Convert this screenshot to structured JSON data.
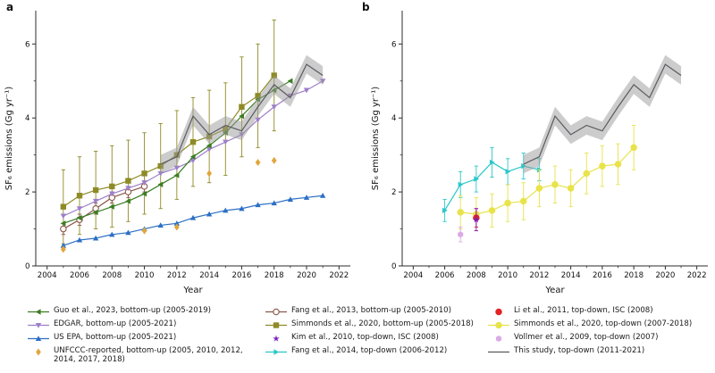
{
  "figure": {
    "panels": [
      {
        "label": "a"
      },
      {
        "label": "b"
      }
    ],
    "xlabel": "Year",
    "ylabel": "SF₆ emissions (Gg yr⁻¹)"
  },
  "chart_data": [
    {
      "type": "line",
      "panel": "a",
      "title": "",
      "xlabel": "Year",
      "ylabel": "SF₆ emissions (Gg yr⁻¹)",
      "xlim": [
        2003.3,
        2022.7
      ],
      "ylim": [
        0,
        6.9
      ],
      "xticks": [
        2004,
        2006,
        2008,
        2010,
        2012,
        2014,
        2016,
        2018,
        2020,
        2022
      ],
      "xticks_minor": [
        2005,
        2007,
        2009,
        2011,
        2013,
        2015,
        2017,
        2019,
        2021
      ],
      "yticks": [
        0,
        2,
        4,
        6
      ],
      "yticks_minor": [
        1,
        3,
        5
      ],
      "grid": false,
      "series": [
        {
          "name": "Simmonds et al., 2020, bottom-up (2005-2018)",
          "color": "#8e8b26",
          "marker": "square",
          "line": true,
          "x": [
            2005,
            2006,
            2007,
            2008,
            2009,
            2010,
            2011,
            2012,
            2013,
            2014,
            2015,
            2016,
            2017,
            2018
          ],
          "y": [
            1.6,
            1.9,
            2.05,
            2.15,
            2.3,
            2.5,
            2.7,
            3.0,
            3.35,
            3.5,
            3.7,
            4.3,
            4.6,
            5.15
          ],
          "yerr": [
            1.0,
            1.05,
            1.05,
            1.1,
            1.1,
            1.1,
            1.15,
            1.2,
            1.2,
            1.25,
            1.25,
            1.35,
            1.4,
            1.5
          ]
        },
        {
          "name": "Fang et al., 2013, bottom-up (2005-2010)",
          "color": "#8a5748",
          "marker": "circle-open",
          "line": true,
          "x": [
            2005,
            2006,
            2007,
            2008,
            2009,
            2010
          ],
          "y": [
            1.0,
            1.25,
            1.55,
            1.85,
            2.0,
            2.15
          ],
          "yerr": [
            0.15,
            0.15,
            0.15,
            0.15,
            0.15,
            0.15
          ]
        },
        {
          "name": "EDGAR, bottom-up (2005-2021)",
          "color": "#9d7fc9",
          "marker": "triangle-down",
          "line": true,
          "x": [
            2005,
            2006,
            2007,
            2008,
            2009,
            2010,
            2011,
            2012,
            2013,
            2014,
            2015,
            2016,
            2017,
            2018,
            2019,
            2020,
            2021
          ],
          "y": [
            1.35,
            1.55,
            1.75,
            1.95,
            2.1,
            2.25,
            2.5,
            2.65,
            2.85,
            3.15,
            3.35,
            3.55,
            3.95,
            4.3,
            4.6,
            4.75,
            5.0
          ]
        },
        {
          "name": "Guo et al., 2023, bottom-up (2005-2019)",
          "color": "#3a7d23",
          "marker": "triangle-left",
          "line": true,
          "x": [
            2005,
            2006,
            2007,
            2008,
            2009,
            2010,
            2011,
            2012,
            2013,
            2014,
            2015,
            2016,
            2017,
            2018,
            2019
          ],
          "y": [
            1.15,
            1.3,
            1.45,
            1.6,
            1.75,
            1.95,
            2.2,
            2.45,
            2.95,
            3.25,
            3.6,
            4.05,
            4.5,
            4.75,
            5.0
          ]
        },
        {
          "name": "US EPA, bottom-up (2005-2021)",
          "color": "#2b6fc4",
          "marker": "triangle-up",
          "line": true,
          "x": [
            2005,
            2006,
            2007,
            2008,
            2009,
            2010,
            2011,
            2012,
            2013,
            2014,
            2015,
            2016,
            2017,
            2018,
            2019,
            2020,
            2021
          ],
          "y": [
            0.55,
            0.7,
            0.75,
            0.85,
            0.9,
            1.0,
            1.1,
            1.15,
            1.3,
            1.4,
            1.5,
            1.55,
            1.65,
            1.7,
            1.8,
            1.85,
            1.9
          ]
        },
        {
          "name": "UNFCCC-reported, bottom-up (2005, 2010, 2012, 2014, 2017, 2018)",
          "color": "#e2a63d",
          "marker": "diamond",
          "line": false,
          "x": [
            2005,
            2010,
            2012,
            2014,
            2017,
            2018
          ],
          "y": [
            0.45,
            0.95,
            1.05,
            2.5,
            2.8,
            2.85
          ]
        },
        {
          "name": "This study, top-down (2011-2021)",
          "color": "#5a5a60",
          "marker": "line",
          "line": true,
          "band": 0.25,
          "x": [
            2011,
            2012,
            2013,
            2014,
            2015,
            2016,
            2017,
            2018,
            2019,
            2020,
            2021
          ],
          "y": [
            2.75,
            2.95,
            4.05,
            3.55,
            3.8,
            3.65,
            4.3,
            4.9,
            4.55,
            5.45,
            5.15
          ]
        }
      ]
    },
    {
      "type": "line",
      "panel": "b",
      "title": "",
      "xlabel": "Year",
      "ylabel": "SF₆ emissions (Gg yr⁻¹)",
      "xlim": [
        2003.3,
        2022.7
      ],
      "ylim": [
        0,
        6.9
      ],
      "xticks": [
        2004,
        2006,
        2008,
        2010,
        2012,
        2014,
        2016,
        2018,
        2020,
        2022
      ],
      "xticks_minor": [
        2005,
        2007,
        2009,
        2011,
        2013,
        2015,
        2017,
        2019,
        2021
      ],
      "yticks": [
        0,
        2,
        4,
        6
      ],
      "yticks_minor": [
        1,
        3,
        5
      ],
      "grid": false,
      "series": [
        {
          "name": "Fang et al., 2014, top-down (2006-2012)",
          "color": "#2bc7c9",
          "marker": "triangle-right",
          "line": true,
          "x": [
            2006,
            2007,
            2008,
            2009,
            2010,
            2011,
            2012
          ],
          "y": [
            1.5,
            2.2,
            2.35,
            2.8,
            2.55,
            2.7,
            2.6
          ],
          "yerr": [
            0.3,
            0.35,
            0.35,
            0.4,
            0.35,
            0.35,
            0.3
          ]
        },
        {
          "name": "Simmonds et al., 2020, top-down (2007-2018)",
          "color": "#e8e34a",
          "marker": "circle",
          "line": true,
          "x": [
            2007,
            2008,
            2009,
            2010,
            2011,
            2012,
            2013,
            2014,
            2015,
            2016,
            2017,
            2018
          ],
          "y": [
            1.45,
            1.4,
            1.5,
            1.7,
            1.75,
            2.1,
            2.2,
            2.1,
            2.5,
            2.7,
            2.75,
            3.2
          ],
          "yerr": [
            0.45,
            0.45,
            0.45,
            0.5,
            0.5,
            0.5,
            0.5,
            0.5,
            0.55,
            0.55,
            0.55,
            0.6
          ]
        },
        {
          "name": "Vollmer et al., 2009, top-down (2007)",
          "color": "#dcaae6",
          "marker": "hexagon",
          "line": false,
          "x": [
            2007
          ],
          "y": [
            0.85
          ],
          "yerr": [
            0.2
          ]
        },
        {
          "name": "Li et al., 2011, top-down, ISC (2008)",
          "color": "#e32222",
          "marker": "circle",
          "line": false,
          "x": [
            2008
          ],
          "y": [
            1.3
          ],
          "yerr": [
            0.25
          ]
        },
        {
          "name": "Kim et al., 2010, top-down, ISC (2008)",
          "color": "#7a1fc0",
          "marker": "star",
          "line": false,
          "x": [
            2008
          ],
          "y": [
            1.25
          ],
          "yerr": [
            0.3
          ]
        },
        {
          "name": "This study, top-down (2011-2021)",
          "color": "#5a5a60",
          "marker": "line",
          "line": true,
          "band": 0.25,
          "x": [
            2011,
            2012,
            2013,
            2014,
            2015,
            2016,
            2017,
            2018,
            2019,
            2020,
            2021
          ],
          "y": [
            2.75,
            2.95,
            4.05,
            3.55,
            3.8,
            3.65,
            4.3,
            4.9,
            4.55,
            5.45,
            5.15
          ]
        }
      ]
    }
  ],
  "legend": {
    "columns": [
      [
        {
          "marker": "triangle-left",
          "line": true,
          "color": "#3a7d23",
          "label": "Guo et al., 2023, bottom-up (2005-2019)"
        },
        {
          "marker": "triangle-down",
          "line": true,
          "color": "#9d7fc9",
          "label": "EDGAR, bottom-up (2005-2021)"
        },
        {
          "marker": "triangle-up",
          "line": true,
          "color": "#2b6fc4",
          "label": "US EPA, bottom-up (2005-2021)"
        },
        {
          "marker": "diamond",
          "line": false,
          "color": "#e2a63d",
          "label": "UNFCCC-reported, bottom-up (2005, 2010, 2012, 2014, 2017, 2018)"
        }
      ],
      [
        {
          "marker": "circle-open",
          "line": true,
          "color": "#8a5748",
          "label": "Fang et al., 2013, bottom-up (2005-2010)"
        },
        {
          "marker": "square",
          "line": true,
          "color": "#8e8b26",
          "label": "Simmonds et al., 2020, bottom-up (2005-2018)"
        },
        {
          "marker": "star",
          "line": false,
          "color": "#7a1fc0",
          "label": "Kim et al., 2010, top-down, ISC (2008)"
        },
        {
          "marker": "triangle-right",
          "line": true,
          "color": "#2bc7c9",
          "label": "Fang et al., 2014, top-down (2006-2012)"
        }
      ],
      [
        {
          "marker": "circle",
          "line": false,
          "color": "#e32222",
          "label": "Li et al., 2011, top-down, ISC (2008)"
        },
        {
          "marker": "circle",
          "line": true,
          "color": "#e8e34a",
          "label": "Simmonds et al., 2020, top-down (2007-2018)"
        },
        {
          "marker": "hexagon",
          "line": false,
          "color": "#dcaae6",
          "label": "Vollmer et al., 2009, top-down (2007)"
        },
        {
          "marker": "line",
          "line": true,
          "color": "#5a5a60",
          "label": "This study, top-down (2011-2021)"
        }
      ]
    ]
  }
}
